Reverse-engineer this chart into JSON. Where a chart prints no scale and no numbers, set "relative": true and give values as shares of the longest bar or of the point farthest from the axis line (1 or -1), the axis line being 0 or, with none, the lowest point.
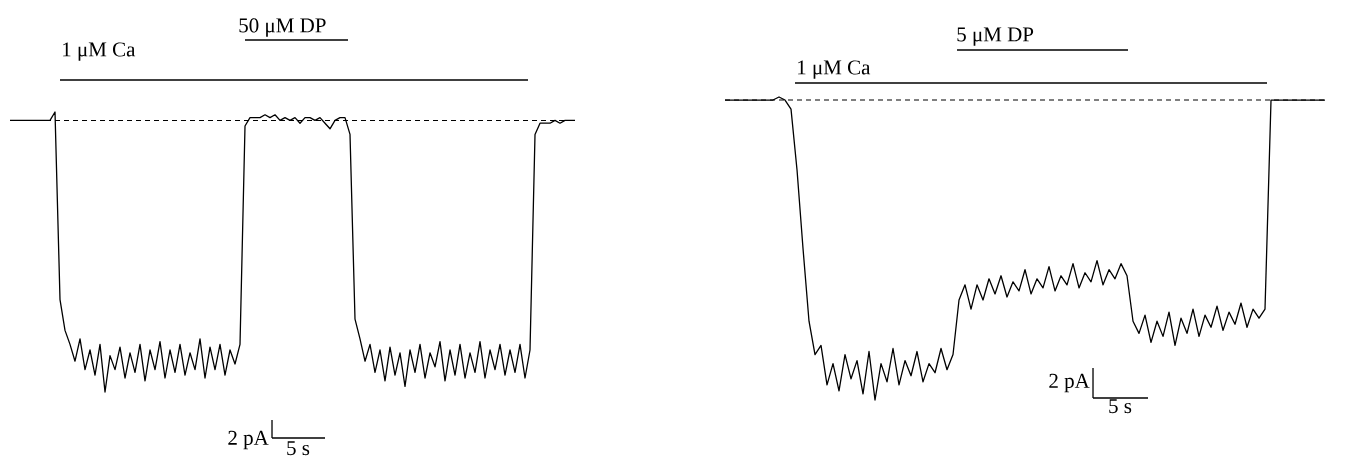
{
  "chart_data": [
    {
      "type": "line",
      "relative": true,
      "categories": [
        null,
        null,
        null,
        null,
        null,
        null,
        null,
        null,
        null,
        null,
        null,
        null,
        null,
        null,
        null,
        null,
        null,
        null,
        null,
        null,
        null,
        null,
        null,
        null,
        null,
        null,
        null,
        null,
        null,
        null,
        null,
        null,
        null,
        null,
        null,
        null,
        null,
        null,
        null,
        null,
        null,
        null,
        null,
        null,
        null,
        null,
        null,
        null,
        null,
        null,
        null,
        null,
        null,
        null,
        null,
        null,
        null,
        null,
        null,
        null,
        null,
        null,
        null,
        null,
        null,
        null,
        null,
        null,
        null,
        null,
        null,
        null,
        null,
        null,
        null,
        null,
        null,
        null,
        null,
        null,
        null,
        null,
        null,
        null,
        null,
        null,
        null,
        null,
        null,
        null,
        null,
        null,
        null,
        null,
        null,
        null,
        null,
        null,
        null,
        null,
        null,
        null,
        null,
        null,
        null,
        null,
        null,
        null,
        null,
        null,
        null,
        null,
        null,
        null
      ],
      "values": [
        0.97,
        0.97,
        0.97,
        0.97,
        0.97,
        0.97,
        0.97,
        0.97,
        0.97,
        1.0,
        0.33,
        0.22,
        0.17,
        0.11,
        0.19,
        0.08,
        0.15,
        0.06,
        0.17,
        0.0,
        0.13,
        0.08,
        0.16,
        0.05,
        0.14,
        0.07,
        0.17,
        0.04,
        0.15,
        0.08,
        0.18,
        0.05,
        0.15,
        0.07,
        0.17,
        0.06,
        0.14,
        0.08,
        0.19,
        0.05,
        0.16,
        0.08,
        0.17,
        0.06,
        0.15,
        0.1,
        0.17,
        0.95,
        0.98,
        0.98,
        0.98,
        0.99,
        0.98,
        0.99,
        0.97,
        0.98,
        0.97,
        0.98,
        0.96,
        0.98,
        0.98,
        0.97,
        0.98,
        0.96,
        0.94,
        0.97,
        0.98,
        0.98,
        0.92,
        0.26,
        0.19,
        0.11,
        0.17,
        0.07,
        0.15,
        0.04,
        0.16,
        0.06,
        0.14,
        0.02,
        0.15,
        0.07,
        0.17,
        0.05,
        0.14,
        0.09,
        0.18,
        0.04,
        0.15,
        0.06,
        0.17,
        0.05,
        0.14,
        0.07,
        0.18,
        0.05,
        0.15,
        0.08,
        0.17,
        0.06,
        0.15,
        0.07,
        0.17,
        0.05,
        0.15,
        0.92,
        0.96,
        0.96,
        0.96,
        0.97,
        0.96,
        0.97,
        0.97,
        0.97
      ],
      "color": "#000000",
      "ref_lines": [
        {
          "axis": "y",
          "value": 0.97,
          "line_style": "dashed"
        }
      ],
      "annotations": [
        "1 μM Ca",
        "50 μM DP",
        "2 pA",
        "5 s"
      ]
    },
    {
      "type": "line",
      "relative": true,
      "categories": [
        null,
        null,
        null,
        null,
        null,
        null,
        null,
        null,
        null,
        null,
        null,
        null,
        null,
        null,
        null,
        null,
        null,
        null,
        null,
        null,
        null,
        null,
        null,
        null,
        null,
        null,
        null,
        null,
        null,
        null,
        null,
        null,
        null,
        null,
        null,
        null,
        null,
        null,
        null,
        null,
        null,
        null,
        null,
        null,
        null,
        null,
        null,
        null,
        null,
        null,
        null,
        null,
        null,
        null,
        null,
        null,
        null,
        null,
        null,
        null,
        null,
        null,
        null,
        null,
        null,
        null,
        null,
        null,
        null,
        null,
        null,
        null,
        null,
        null,
        null,
        null,
        null,
        null,
        null,
        null,
        null,
        null,
        null,
        null,
        null,
        null,
        null,
        null,
        null,
        null,
        null,
        null,
        null,
        null,
        null,
        null,
        null,
        null,
        null,
        null,
        null
      ],
      "values": [
        0.99,
        0.99,
        0.99,
        0.99,
        0.99,
        0.99,
        0.99,
        0.99,
        0.99,
        1.0,
        0.99,
        0.96,
        0.76,
        0.5,
        0.26,
        0.15,
        0.18,
        0.05,
        0.12,
        0.03,
        0.15,
        0.07,
        0.13,
        0.02,
        0.16,
        0.0,
        0.12,
        0.06,
        0.17,
        0.05,
        0.13,
        0.08,
        0.16,
        0.06,
        0.12,
        0.09,
        0.17,
        0.1,
        0.15,
        0.33,
        0.38,
        0.3,
        0.38,
        0.33,
        0.4,
        0.35,
        0.41,
        0.34,
        0.39,
        0.36,
        0.43,
        0.35,
        0.4,
        0.37,
        0.44,
        0.36,
        0.41,
        0.38,
        0.45,
        0.37,
        0.42,
        0.39,
        0.46,
        0.38,
        0.43,
        0.4,
        0.45,
        0.41,
        0.26,
        0.22,
        0.28,
        0.19,
        0.26,
        0.21,
        0.29,
        0.18,
        0.27,
        0.22,
        0.3,
        0.21,
        0.28,
        0.24,
        0.31,
        0.23,
        0.29,
        0.25,
        0.32,
        0.24,
        0.3,
        0.27,
        0.3,
        0.99,
        0.99,
        0.99,
        0.99,
        0.99,
        0.99,
        0.99,
        0.99,
        0.99,
        0.99
      ],
      "color": "#000000",
      "ref_lines": [
        {
          "axis": "y",
          "value": 0.99,
          "line_style": "dashed"
        }
      ],
      "annotations": [
        "1 μM Ca",
        "5 μM DP",
        "2 pA",
        "5 s"
      ]
    }
  ]
}
